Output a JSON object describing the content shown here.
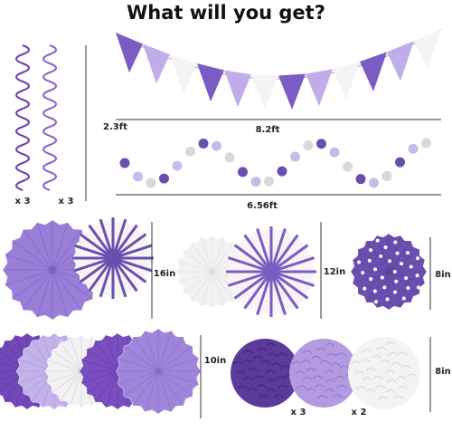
{
  "title": "What will you get?",
  "swirls": {
    "height": "2.3ft",
    "counts": [
      "x 3",
      "x 3"
    ]
  },
  "banner": {
    "width": "8.2ft"
  },
  "garland": {
    "width": "6.56ft"
  },
  "fans": [
    {
      "size": "16in"
    },
    {
      "size": "12in"
    },
    {
      "size": "8in"
    },
    {
      "size": "10in"
    }
  ],
  "poms": {
    "size": "8in",
    "counts": [
      "x 3",
      "x 2"
    ]
  }
}
